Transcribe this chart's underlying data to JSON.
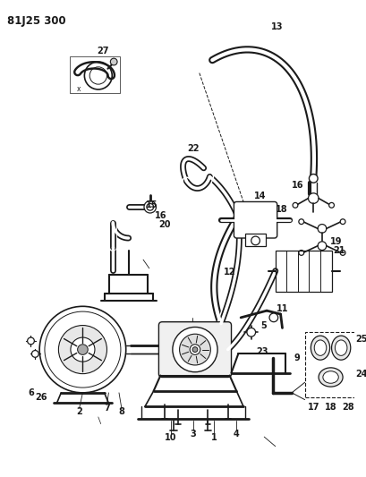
{
  "title": "81J25 300",
  "background_color": "#ffffff",
  "line_color": "#1a1a1a",
  "figsize": [
    4.09,
    5.33
  ],
  "dpi": 100
}
